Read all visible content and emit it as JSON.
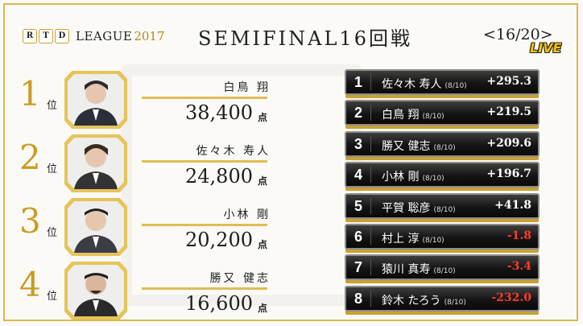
{
  "header": {
    "logo_letters": [
      "R",
      "T",
      "D"
    ],
    "logo_word": "LEAGUE",
    "logo_year": "2017",
    "title": "SEMIFINAL16回戦",
    "subtitle": "<16/20>",
    "live": "LIVE"
  },
  "standings": [
    {
      "rank": "1",
      "suffix": "位",
      "name": "白鳥 翔",
      "score": "38,400",
      "unit": "点"
    },
    {
      "rank": "2",
      "suffix": "位",
      "name": "佐々木 寿人",
      "score": "24,800",
      "unit": "点"
    },
    {
      "rank": "3",
      "suffix": "位",
      "name": "小林 剛",
      "score": "20,200",
      "unit": "点"
    },
    {
      "rank": "4",
      "suffix": "位",
      "name": "勝又 健志",
      "score": "16,600",
      "unit": "点"
    }
  ],
  "ranking": [
    {
      "rank": "1",
      "name": "佐々木 寿人",
      "games": "(8/10)",
      "points": "+295.3",
      "sign": "pos"
    },
    {
      "rank": "2",
      "name": "白鳥 翔",
      "games": "(8/10)",
      "points": "+219.5",
      "sign": "pos"
    },
    {
      "rank": "3",
      "name": "勝又 健志",
      "games": "(8/10)",
      "points": "+209.6",
      "sign": "pos"
    },
    {
      "rank": "4",
      "name": "小林 剛",
      "games": "(8/10)",
      "points": "+196.7",
      "sign": "pos"
    },
    {
      "rank": "5",
      "name": "平賀 聡彦",
      "games": "(8/10)",
      "points": "+41.8",
      "sign": "pos"
    },
    {
      "rank": "6",
      "name": "村上 淳",
      "games": "(8/10)",
      "points": "-1.8",
      "sign": "neg"
    },
    {
      "rank": "7",
      "name": "猿川 真寿",
      "games": "(8/10)",
      "points": "-3.4",
      "sign": "neg"
    },
    {
      "rank": "8",
      "name": "鈴木 たろう",
      "games": "(8/10)",
      "points": "-232.0",
      "sign": "neg"
    }
  ],
  "colors": {
    "accent_gold": "#cc9b23",
    "bar_border_gold": "#c9a132",
    "negative": "#ff3a2a"
  }
}
